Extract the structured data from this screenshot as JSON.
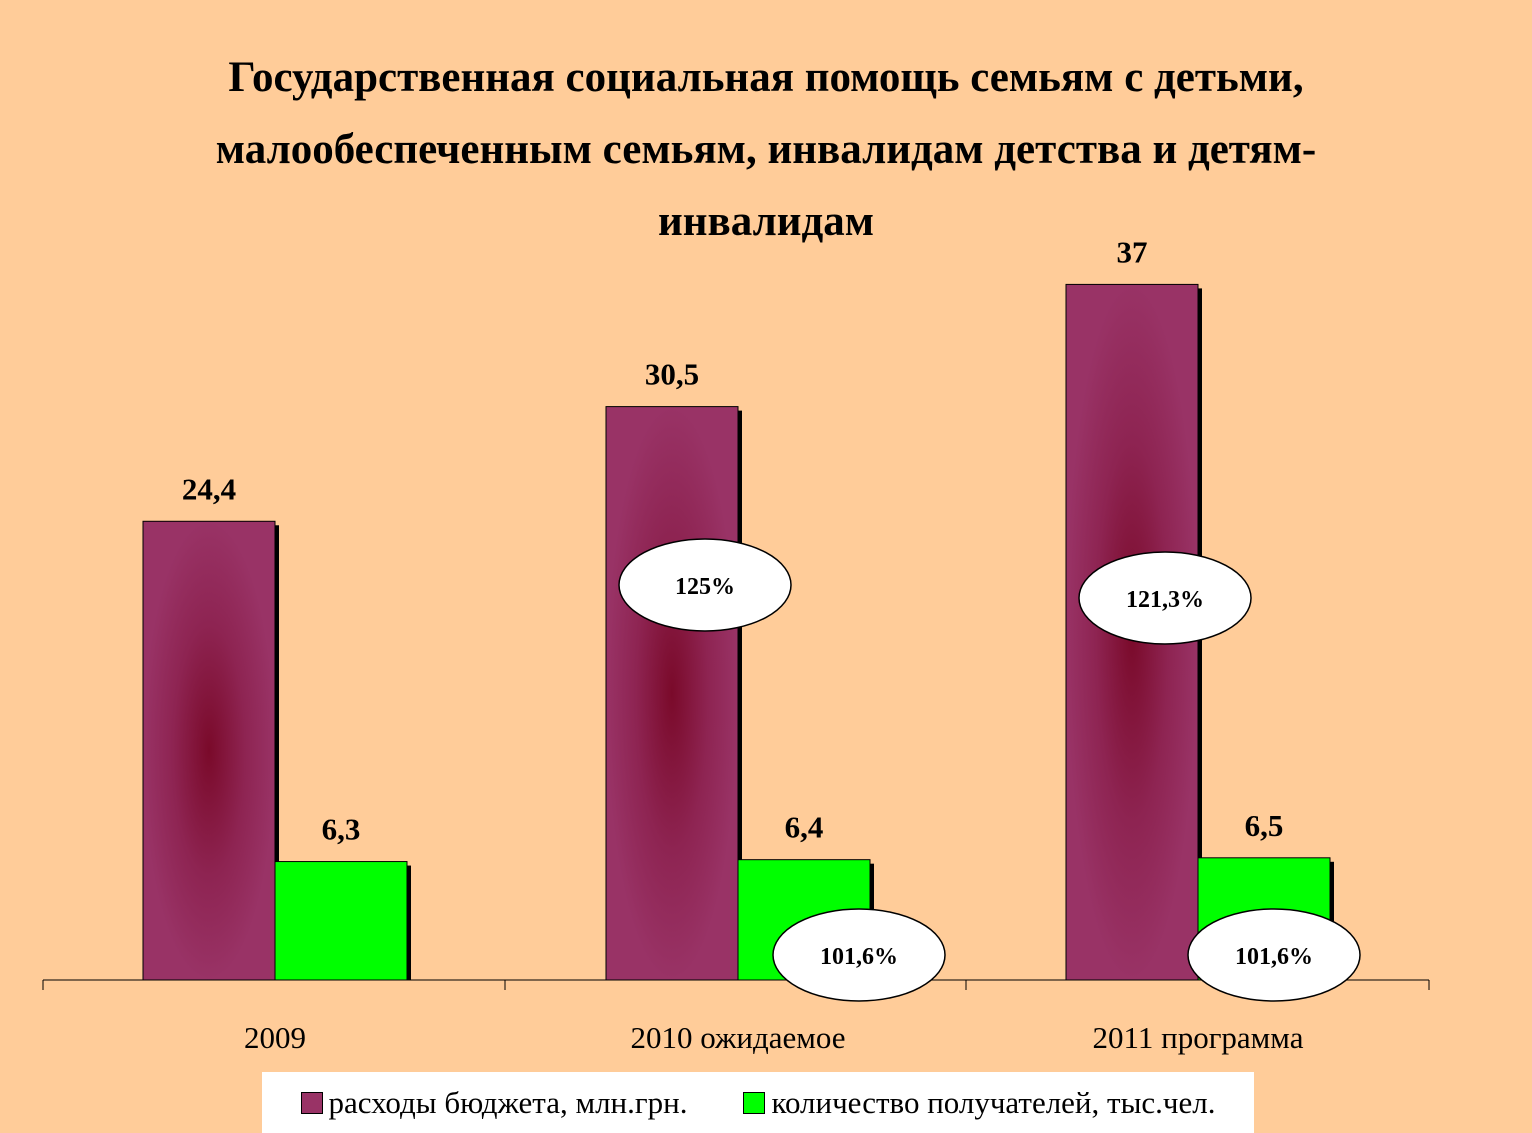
{
  "chart_data": {
    "type": "bar",
    "title_lines": [
      "Государственная социальная помощь семьям с детьми,",
      "малообеспеченным семьям, инвалидам детства  и детям-",
      "инвалидам"
    ],
    "categories": [
      "2009",
      "2010 ожидаемое",
      "2011 программа"
    ],
    "series": [
      {
        "name": "расходы бюджета, млн.грн.",
        "color": "#993366",
        "values": [
          24.4,
          30.5,
          37
        ],
        "labels": [
          "24,4",
          "30,5",
          "37"
        ]
      },
      {
        "name": "количество получателей, тыс.чел.",
        "color": "#00FF00",
        "values": [
          6.3,
          6.4,
          6.5
        ],
        "labels": [
          "6,3",
          "6,4",
          "6,5"
        ]
      }
    ],
    "annotations": [
      {
        "category_index": 1,
        "series_index": 0,
        "text": "125%"
      },
      {
        "category_index": 2,
        "series_index": 0,
        "text": "121,3%"
      },
      {
        "category_index": 1,
        "series_index": 1,
        "text": "101,6%"
      },
      {
        "category_index": 2,
        "series_index": 1,
        "text": "101,6%"
      }
    ],
    "ylim": [
      0,
      42
    ],
    "xlabel": "",
    "ylabel": "",
    "grid": false,
    "legend_position": "bottom",
    "background": "#FFCC99"
  }
}
